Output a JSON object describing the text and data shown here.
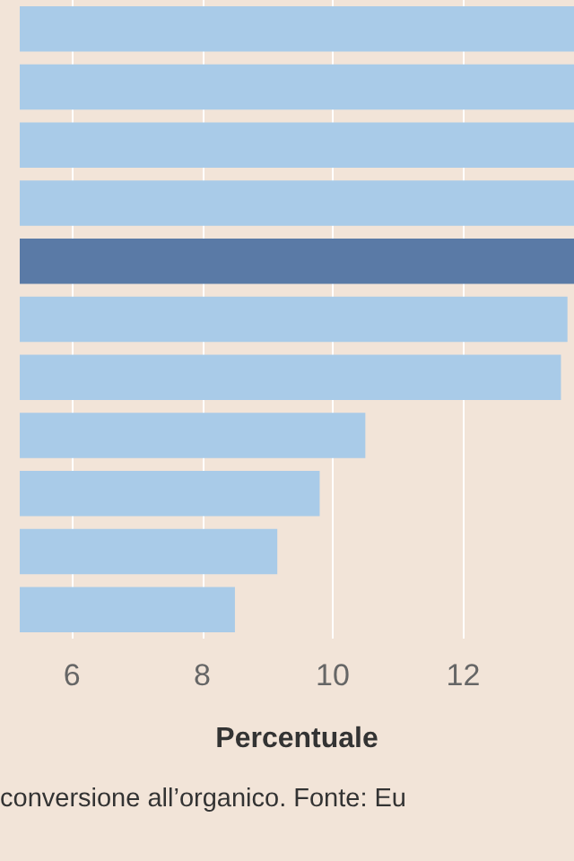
{
  "chart_data": {
    "type": "bar",
    "orientation": "horizontal",
    "xlabel": "Percentuale",
    "annotations": [
      "conversione all’organico. Fonte: Eu"
    ],
    "categories": [
      null,
      null,
      null,
      null,
      null,
      null,
      null,
      null,
      null,
      null,
      null
    ],
    "values": [
      13.7,
      13.7,
      13.7,
      13.7,
      13.7,
      13.6,
      13.5,
      10.5,
      9.8,
      9.15,
      8.5
    ],
    "colors": [
      "#a9cbe8",
      "#a9cbe8",
      "#a9cbe8",
      "#a9cbe8",
      "#5a7aa6",
      "#a9cbe8",
      "#a9cbe8",
      "#a9cbe8",
      "#a9cbe8",
      "#a9cbe8",
      "#a9cbe8"
    ],
    "xlim": [
      5.2,
      13.7
    ],
    "xticks": [
      6,
      8,
      10,
      12
    ],
    "grid": "x"
  }
}
